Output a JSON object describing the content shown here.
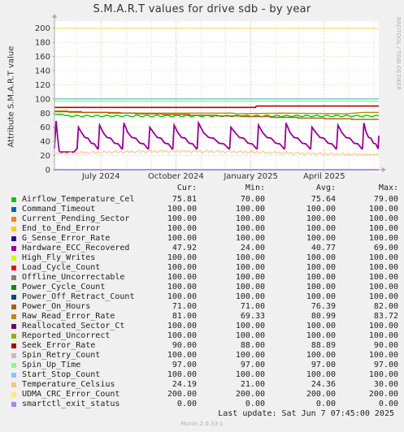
{
  "chart_data": {
    "type": "line",
    "title": "S.M.A.R.T values for drive sdb - by year",
    "ylabel": "Attribute S.M.A.R.T value",
    "ylim": [
      0,
      210
    ],
    "yticks": [
      0,
      20,
      40,
      60,
      80,
      100,
      120,
      140,
      160,
      180,
      200
    ],
    "xlim": [
      "2024-05-05",
      "2025-06-07"
    ],
    "xticks": [
      {
        "date": "2024-07-01",
        "label": "July 2024"
      },
      {
        "date": "2024-10-01",
        "label": "October 2024"
      },
      {
        "date": "2025-01-01",
        "label": "January 2025"
      },
      {
        "date": "2025-04-01",
        "label": "April 2025"
      }
    ],
    "grid": true,
    "side_label": "RRDTOOL / TOBI OETIKER",
    "column_headers": [
      "Cur:",
      "Min:",
      "Avg:",
      "Max:"
    ],
    "series": [
      {
        "name": "Airflow_Temperature_Cel",
        "color": "#00cc00",
        "cur": "75.81",
        "min": "70.00",
        "avg": "75.64",
        "max": "79.00"
      },
      {
        "name": "Command_Timeout",
        "color": "#0066b3",
        "cur": "100.00",
        "min": "100.00",
        "avg": "100.00",
        "max": "100.00"
      },
      {
        "name": "Current_Pending_Sector",
        "color": "#ff8000",
        "cur": "100.00",
        "min": "100.00",
        "avg": "100.00",
        "max": "100.00"
      },
      {
        "name": "End_to_End_Error",
        "color": "#ffcc00",
        "cur": "100.00",
        "min": "100.00",
        "avg": "100.00",
        "max": "100.00"
      },
      {
        "name": "G_Sense_Error_Rate",
        "color": "#330099",
        "cur": "100.00",
        "min": "100.00",
        "avg": "100.00",
        "max": "100.00"
      },
      {
        "name": "Hardware_ECC_Recovered",
        "color": "#990099",
        "cur": "47.92",
        "min": "24.00",
        "avg": "40.77",
        "max": "69.00"
      },
      {
        "name": "High_Fly_Writes",
        "color": "#ccff00",
        "cur": "100.00",
        "min": "100.00",
        "avg": "100.00",
        "max": "100.00"
      },
      {
        "name": "Load_Cycle_Count",
        "color": "#ff0000",
        "cur": "100.00",
        "min": "100.00",
        "avg": "100.00",
        "max": "100.00"
      },
      {
        "name": "Offline_Uncorrectable",
        "color": "#808080",
        "cur": "100.00",
        "min": "100.00",
        "avg": "100.00",
        "max": "100.00"
      },
      {
        "name": "Power_Cycle_Count",
        "color": "#008f00",
        "cur": "100.00",
        "min": "100.00",
        "avg": "100.00",
        "max": "100.00"
      },
      {
        "name": "Power_Off_Retract_Count",
        "color": "#00487d",
        "cur": "100.00",
        "min": "100.00",
        "avg": "100.00",
        "max": "100.00"
      },
      {
        "name": "Power_On_Hours",
        "color": "#b35a00",
        "cur": "71.00",
        "min": "71.00",
        "avg": "76.39",
        "max": "82.00"
      },
      {
        "name": "Raw_Read_Error_Rate",
        "color": "#b38f00",
        "cur": "81.00",
        "min": "69.33",
        "avg": "80.99",
        "max": "83.72"
      },
      {
        "name": "Reallocated_Sector_Ct",
        "color": "#6b006b",
        "cur": "100.00",
        "min": "100.00",
        "avg": "100.00",
        "max": "100.00"
      },
      {
        "name": "Reported_Uncorrect",
        "color": "#8fb300",
        "cur": "100.00",
        "min": "100.00",
        "avg": "100.00",
        "max": "100.00"
      },
      {
        "name": "Seek_Error_Rate",
        "color": "#b30000",
        "cur": "90.00",
        "min": "88.00",
        "avg": "88.89",
        "max": "90.00"
      },
      {
        "name": "Spin_Retry_Count",
        "color": "#bebebe",
        "cur": "100.00",
        "min": "100.00",
        "avg": "100.00",
        "max": "100.00"
      },
      {
        "name": "Spin_Up_Time",
        "color": "#80ff80",
        "cur": "97.00",
        "min": "97.00",
        "avg": "97.00",
        "max": "97.00"
      },
      {
        "name": "Start_Stop_Count",
        "color": "#80c9ff",
        "cur": "100.00",
        "min": "100.00",
        "avg": "100.00",
        "max": "100.00"
      },
      {
        "name": "Temperature_Celsius",
        "color": "#ffc080",
        "cur": "24.19",
        "min": "21.00",
        "avg": "24.36",
        "max": "30.00"
      },
      {
        "name": "UDMA_CRC_Error_Count",
        "color": "#ffe680",
        "cur": "200.00",
        "min": "200.00",
        "avg": "200.00",
        "max": "200.00"
      },
      {
        "name": "smartctl_exit_status",
        "color": "#aa80ff",
        "cur": "0.00",
        "min": "0.00",
        "avg": "0.00",
        "max": "0.00"
      }
    ],
    "last_update": "Last update:  Sat Jun  7 07:45:00 2025",
    "generator": "Munin 2.0.33-1"
  }
}
